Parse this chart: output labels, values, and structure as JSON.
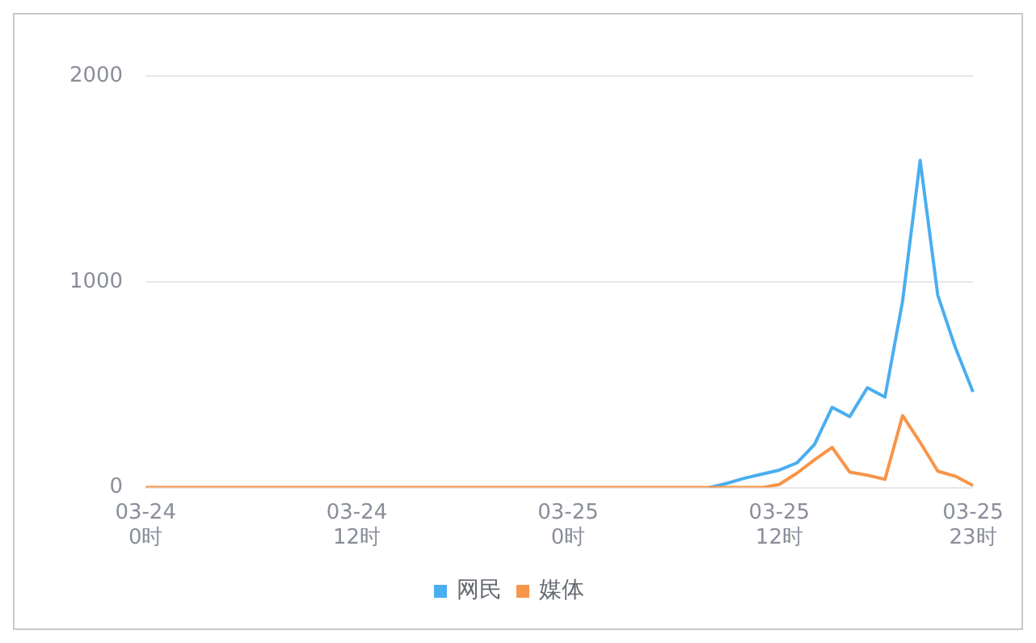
{
  "chart_data": {
    "type": "line",
    "categories": [
      "03-24 0时",
      null,
      null,
      null,
      null,
      null,
      null,
      null,
      null,
      null,
      null,
      null,
      "03-24 12时",
      null,
      null,
      null,
      null,
      null,
      null,
      null,
      null,
      null,
      null,
      null,
      "03-25 0时",
      null,
      null,
      null,
      null,
      null,
      null,
      null,
      null,
      null,
      null,
      null,
      "03-25 12时",
      null,
      null,
      null,
      null,
      null,
      null,
      null,
      null,
      null,
      null,
      "03-25 23时"
    ],
    "series": [
      {
        "name": "网民",
        "color": "#4aaef0",
        "values": [
          null,
          null,
          null,
          null,
          null,
          null,
          null,
          null,
          null,
          null,
          null,
          null,
          null,
          null,
          null,
          null,
          null,
          null,
          null,
          null,
          null,
          null,
          null,
          null,
          null,
          null,
          null,
          null,
          null,
          null,
          null,
          null,
          0,
          20,
          45,
          65,
          85,
          120,
          210,
          390,
          345,
          485,
          440,
          905,
          1590,
          935,
          680,
          465
        ]
      },
      {
        "name": "媒体",
        "color": "#f7954a",
        "values": [
          0,
          0,
          0,
          0,
          0,
          0,
          0,
          0,
          0,
          0,
          0,
          0,
          0,
          0,
          0,
          0,
          0,
          0,
          0,
          0,
          0,
          0,
          0,
          0,
          0,
          0,
          0,
          0,
          0,
          0,
          0,
          0,
          0,
          0,
          0,
          0,
          15,
          70,
          135,
          195,
          75,
          60,
          40,
          350,
          220,
          80,
          55,
          10
        ]
      }
    ],
    "ylim": [
      0,
      2000
    ],
    "yticks": [
      0,
      1000,
      2000
    ],
    "grid": "y",
    "legend": "bottom",
    "marker": "none",
    "line_style": "solid"
  }
}
